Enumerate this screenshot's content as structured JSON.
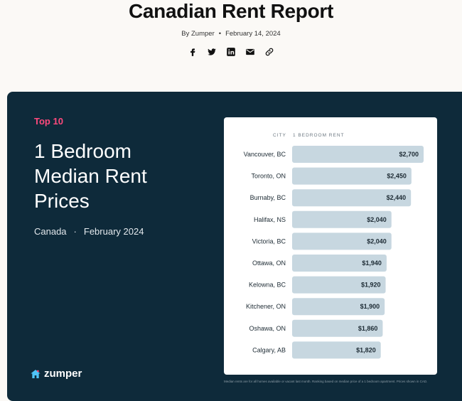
{
  "header": {
    "title": "Canadian Rent Report",
    "byline": "By Zumper",
    "date": "February 14, 2024",
    "share_icons": [
      "facebook-icon",
      "twitter-icon",
      "linkedin-icon",
      "mail-icon",
      "link-icon"
    ]
  },
  "card": {
    "eyebrow": "Top 10",
    "headline_lines": [
      "1 Bedroom",
      "Median Rent",
      "Prices"
    ],
    "region": "Canada",
    "period": "February 2024",
    "logo_text": "zumper",
    "footnote": "Median rents are for all homes available or vacant last month. Ranking based on median price of a 1 bedroom apartment. Prices shown in CAD.",
    "colors": {
      "background": "#0e2a3a",
      "accent": "#ff4a7d",
      "bar": "#c7d7e0",
      "logo_icon": "#4fc3f7"
    }
  },
  "chart_data": {
    "type": "bar",
    "orientation": "horizontal",
    "column_headers": [
      "CITY",
      "1 BEDROOM RENT"
    ],
    "categories": [
      "Vancouver, BC",
      "Toronto, ON",
      "Burnaby, BC",
      "Halifax, NS",
      "Victoria, BC",
      "Ottawa, ON",
      "Kelowna, BC",
      "Kitchener, ON",
      "Oshawa, ON",
      "Calgary, AB"
    ],
    "values": [
      2700,
      2450,
      2440,
      2040,
      2040,
      1940,
      1920,
      1900,
      1860,
      1820
    ],
    "labels": [
      "$2,700",
      "$2,450",
      "$2,440",
      "$2,040",
      "$2,040",
      "$1,940",
      "$1,920",
      "$1,900",
      "$1,860",
      "$1,820"
    ],
    "grid": false
  }
}
